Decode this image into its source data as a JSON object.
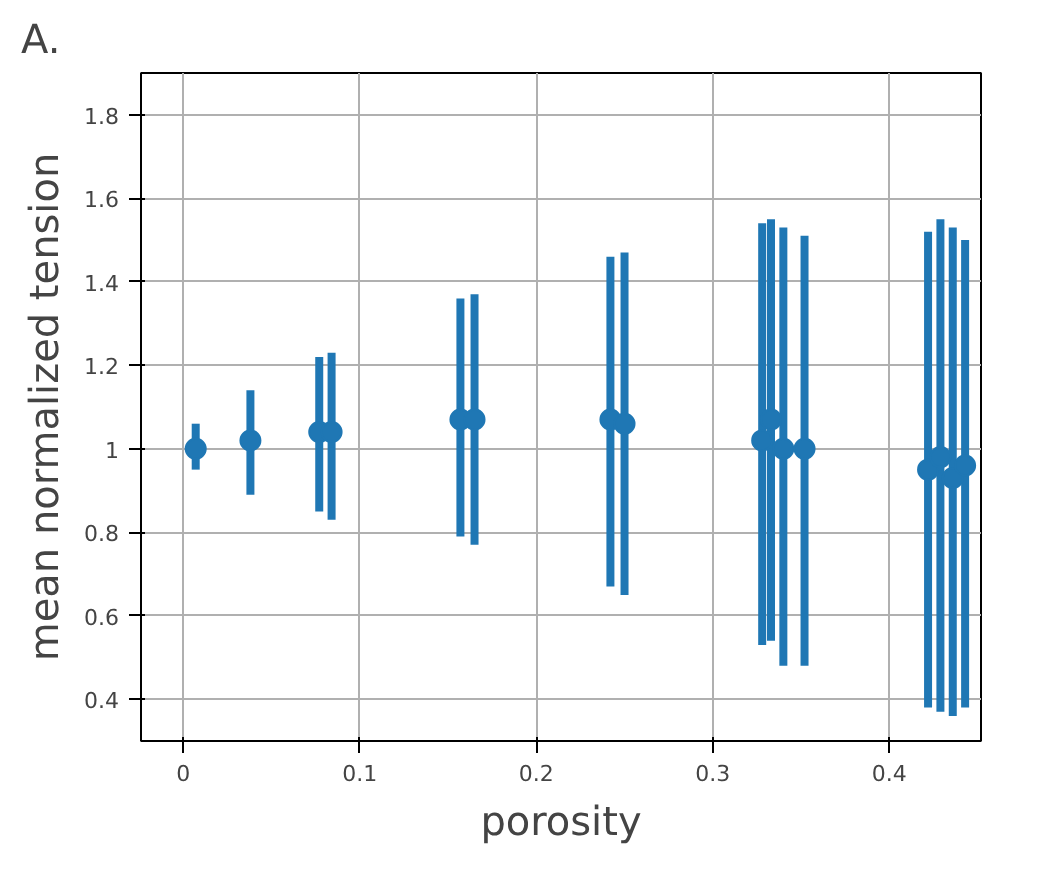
{
  "chart_data": {
    "type": "scatter",
    "xlabel": "porosity",
    "ylabel": "mean normalized tension",
    "annotations": [
      "A."
    ],
    "x": [
      0.007,
      0.038,
      0.077,
      0.084,
      0.157,
      0.165,
      0.242,
      0.25,
      0.328,
      0.333,
      0.34,
      0.352,
      0.422,
      0.429,
      0.436,
      0.443
    ],
    "series": [
      {
        "color": "#1f77b4",
        "values": [
          1.0,
          1.02,
          1.04,
          1.04,
          1.07,
          1.07,
          1.07,
          1.06,
          1.02,
          1.07,
          1.0,
          1.0,
          0.95,
          0.98,
          0.93,
          0.96
        ],
        "errors": [
          [
            0.95,
            1.06
          ],
          [
            0.89,
            1.14
          ],
          [
            0.85,
            1.22
          ],
          [
            0.83,
            1.23
          ],
          [
            0.79,
            1.36
          ],
          [
            0.77,
            1.37
          ],
          [
            0.67,
            1.46
          ],
          [
            0.65,
            1.47
          ],
          [
            0.53,
            1.54
          ],
          [
            0.54,
            1.55
          ],
          [
            0.48,
            1.53
          ],
          [
            0.48,
            1.51
          ],
          [
            0.38,
            1.52
          ],
          [
            0.37,
            1.55
          ],
          [
            0.36,
            1.53
          ],
          [
            0.38,
            1.5
          ]
        ]
      }
    ],
    "marker": "circle",
    "grid": true,
    "xlim": [
      -0.024,
      0.452
    ],
    "xticks": [
      0.0,
      0.1,
      0.2,
      0.3,
      0.4
    ],
    "ylim": [
      0.3,
      1.9
    ],
    "yticks": [
      0.4,
      0.6,
      0.8,
      1.0,
      1.2,
      1.4,
      1.6,
      1.8
    ]
  }
}
